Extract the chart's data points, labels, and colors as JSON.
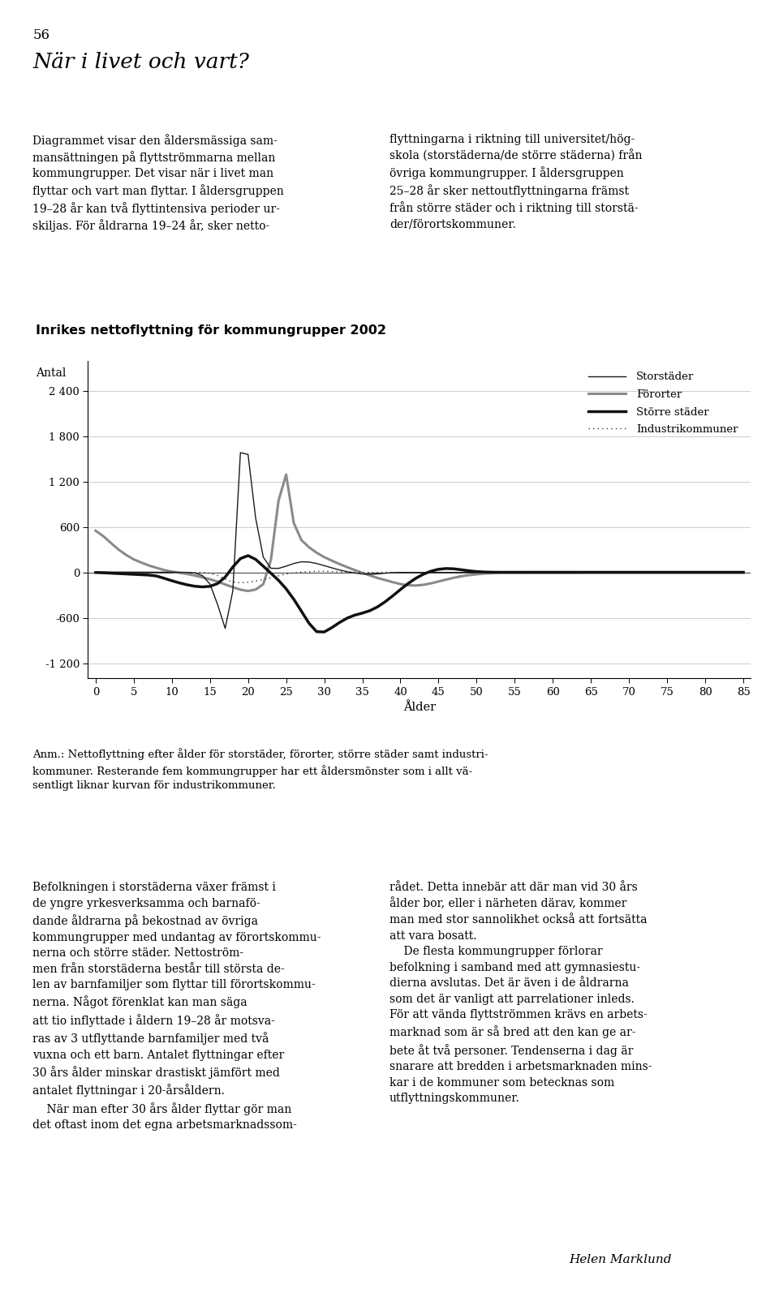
{
  "title": "Inrikes nettoflyttning för kommungrupper 2002",
  "ylabel": "Antal",
  "xlabel": "Ålder",
  "yticks": [
    -1200,
    -600,
    0,
    600,
    1200,
    1800,
    2400
  ],
  "xticks": [
    0,
    5,
    10,
    15,
    20,
    25,
    30,
    35,
    40,
    45,
    50,
    55,
    60,
    65,
    70,
    75,
    80,
    85
  ],
  "xlim": [
    -1,
    86
  ],
  "ylim": [
    -1400,
    2800
  ],
  "background_color": "#c8d9e2",
  "plot_bg_color": "#ffffff",
  "page_color": "#ffffff",
  "page_number": "56",
  "section_title": "När i livet och vart?",
  "body_left": "Diagrammet visar den åldersmässiga sam-\nmansättningen på flyttströmmarna mellan\nkommungrupper. Det visar när i livet man\nflyttar och vart man flyttar. I åldersgruppen\n19–28 år kan två flyttintensiva perioder ur-\nskiljas. För åldrarna 19–24 år, sker netto-",
  "body_right": "flyttningarna i riktning till universitet/hög-\nskola (storstäderna/de större städerna) från\növriga kommungrupper. I åldersgruppen\n25–28 år sker nettoutflyttningarna främst\nfrån större städer och i riktning till storstä-\nder/förortskommuner.",
  "annot": "Anm.: Nettoflyttning efter ålder för storstäder, förorter, större städer samt industri-\nkommuner. Resterande fem kommungrupper har ett åldersmönster som i allt vä-\nsentligt liknar kurvan för industrikommuner.",
  "lower_left": "Befolkningen i storstäderna växer främst i\nde yngre yrkesverksamma och barnafö-\ndande åldrarna på bekostnad av övriga\nkommungrupper med undantag av förortskommu-\nnerna och större städer. Nettoström-\nmen från storstäderna består till största de-\nlen av barnfamiljer som flyttar till förortskommu-\nnerna. Något förenklat kan man säga\natt tio inflyttade i åldern 19–28 år motsva-\nras av 3 utflyttande barnfamiljer med två\nvuxna och ett barn. Antalet flyttningar efter\n30 års ålder minskar drastiskt jämfört med\nantalet flyttningar i 20-årsåldern.\n    När man efter 30 års ålder flyttar gör man\ndet oftast inom det egna arbetsmarknadssom-",
  "lower_right": "rådet. Detta innebär att där man vid 30 års\nålder bor, eller i närheten därav, kommer\nman med stor sannolikhet också att fortsätta\natt vara bosatt.\n    De flesta kommungrupper förlorar\nbefolkning i samband med att gymnasiestu-\ndierna avslutas. Det är även i de åldrarna\nsom det är vanligt att parrelationer inleds.\nFör att vända flyttströmmen krävs en arbets-\nmarknad som är så bred att den kan ge ar-\nbete åt två personer. Tendenserna i dag är\nsnarare att bredden i arbetsmarknaden mins-\nkar i de kommuner som betecknas som\nutflyttningskommuner.",
  "author": "Helen Marklund"
}
